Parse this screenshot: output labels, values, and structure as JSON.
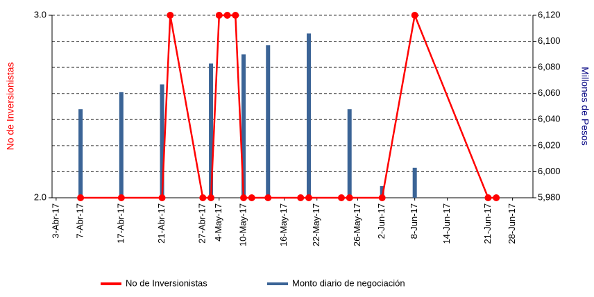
{
  "chart_data": {
    "type": "combo",
    "y_label": "No de Inversionistas",
    "y2_label": "Millones de Pesos",
    "categories": [
      "3-Abr-17",
      null,
      null,
      "7-Abr-17",
      null,
      null,
      null,
      null,
      "17-Abr-17",
      null,
      null,
      null,
      null,
      "21-Abr-17",
      null,
      null,
      null,
      null,
      "27-Abr-17",
      null,
      "4-May-17",
      null,
      null,
      "10-May-17",
      null,
      null,
      null,
      null,
      "16-May-17",
      null,
      null,
      null,
      "22-May-17",
      null,
      null,
      null,
      null,
      "26-May-17",
      null,
      null,
      "2-Jun-17",
      null,
      null,
      null,
      "8-Jun-17",
      null,
      null,
      null,
      "14-Jun-17",
      null,
      null,
      null,
      null,
      "21-Jun-17",
      null,
      null,
      "28-Jun-17",
      null,
      null
    ],
    "series": [
      {
        "name": "No de Inversionistas",
        "type": "line",
        "axis": "y",
        "color": "#ff0000",
        "connect_gaps": true,
        "values": [
          null,
          null,
          null,
          2,
          null,
          null,
          null,
          null,
          2,
          null,
          null,
          null,
          null,
          2,
          3,
          null,
          null,
          null,
          2,
          2,
          3,
          3,
          3,
          2,
          2,
          null,
          2,
          null,
          null,
          null,
          2,
          2,
          null,
          null,
          null,
          2,
          2,
          null,
          null,
          null,
          2,
          null,
          null,
          null,
          3,
          null,
          null,
          null,
          null,
          null,
          null,
          null,
          null,
          2,
          2,
          null,
          null,
          null,
          null
        ]
      },
      {
        "name": "Monto diario de negociación",
        "type": "bar",
        "axis": "y2",
        "color": "#3b6496",
        "values": [
          null,
          null,
          null,
          6048,
          null,
          null,
          null,
          null,
          6061,
          null,
          null,
          null,
          null,
          6067,
          null,
          null,
          null,
          null,
          null,
          6083,
          null,
          null,
          null,
          6090,
          null,
          null,
          6097,
          null,
          null,
          null,
          null,
          6106,
          null,
          null,
          null,
          null,
          6048,
          null,
          null,
          null,
          5989,
          null,
          null,
          null,
          6003,
          null,
          null,
          null,
          null,
          null,
          null,
          null,
          null,
          null,
          null,
          null,
          null,
          null,
          null
        ]
      }
    ],
    "ylim": [
      2,
      3
    ],
    "yticks": [
      {
        "value": 2,
        "label": "2.0"
      },
      {
        "value": 3,
        "label": "3.0"
      }
    ],
    "y2lim": [
      5980,
      6120
    ],
    "y2ticks": [
      {
        "value": 5980,
        "label": "5,980"
      },
      {
        "value": 6000,
        "label": "6,000"
      },
      {
        "value": 6020,
        "label": "6,020"
      },
      {
        "value": 6040,
        "label": "6,040"
      },
      {
        "value": 6060,
        "label": "6,060"
      },
      {
        "value": 6080,
        "label": "6,080"
      },
      {
        "value": 6100,
        "label": "6,100"
      },
      {
        "value": 6120,
        "label": "6,120"
      }
    ],
    "grid": true,
    "legend": "bottom"
  }
}
